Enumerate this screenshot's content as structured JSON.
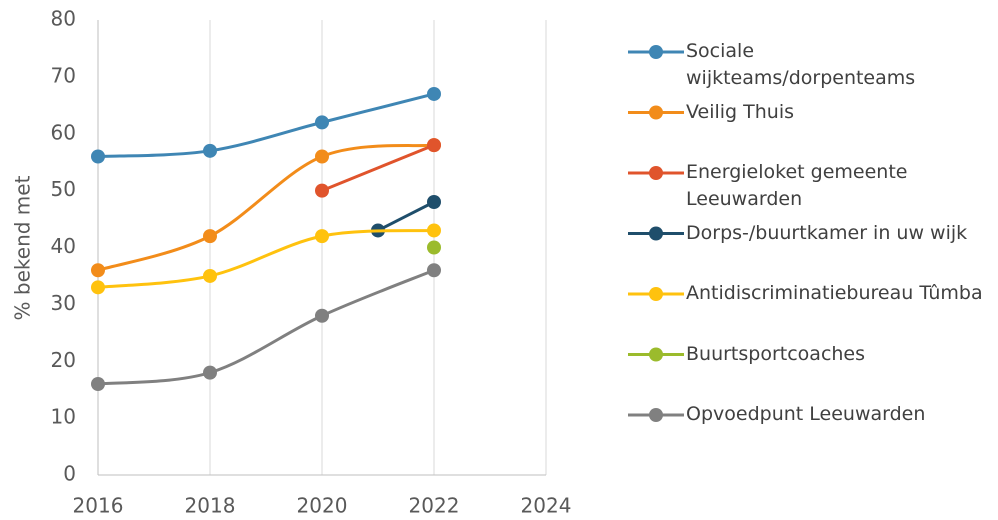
{
  "chart_data": {
    "type": "line",
    "y_label": "% bekend met",
    "xlim": [
      2016,
      2024
    ],
    "xticks": [
      2016,
      2018,
      2020,
      2022,
      2024
    ],
    "ylim": [
      0,
      80
    ],
    "yticks": [
      0,
      10,
      20,
      30,
      40,
      50,
      60,
      70,
      80
    ],
    "grid": "x",
    "smooth": true,
    "legend": "right",
    "series": [
      {
        "name": "Sociale wijkteams/dorpenteams",
        "color": "#3f86b4",
        "x": [
          2016,
          2018,
          2020,
          2022
        ],
        "values": [
          56,
          57,
          62,
          67
        ]
      },
      {
        "name": "Veilig Thuis",
        "color": "#f28c1a",
        "x": [
          2016,
          2018,
          2020,
          2022
        ],
        "values": [
          36,
          42,
          56,
          58
        ]
      },
      {
        "name": "Energieloket gemeente Leeuwarden",
        "color": "#e0542c",
        "x": [
          2020,
          2022
        ],
        "values": [
          50,
          58
        ]
      },
      {
        "name": "Dorps-/buurtkamer in uw wijk",
        "color": "#1f4e6b",
        "x": [
          2021,
          2022
        ],
        "values": [
          43,
          48
        ]
      },
      {
        "name": "Antidiscriminatiebureau Tûmba",
        "color": "#ffc20e",
        "x": [
          2016,
          2018,
          2020,
          2022
        ],
        "values": [
          33,
          35,
          42,
          43
        ]
      },
      {
        "name": "Buurtsportcoaches",
        "color": "#9bbb2c",
        "x": [
          2022
        ],
        "values": [
          40
        ]
      },
      {
        "name": "Opvoedpunt Leeuwarden",
        "color": "#808080",
        "x": [
          2016,
          2018,
          2020,
          2022
        ],
        "values": [
          16,
          18,
          28,
          36
        ]
      }
    ]
  }
}
